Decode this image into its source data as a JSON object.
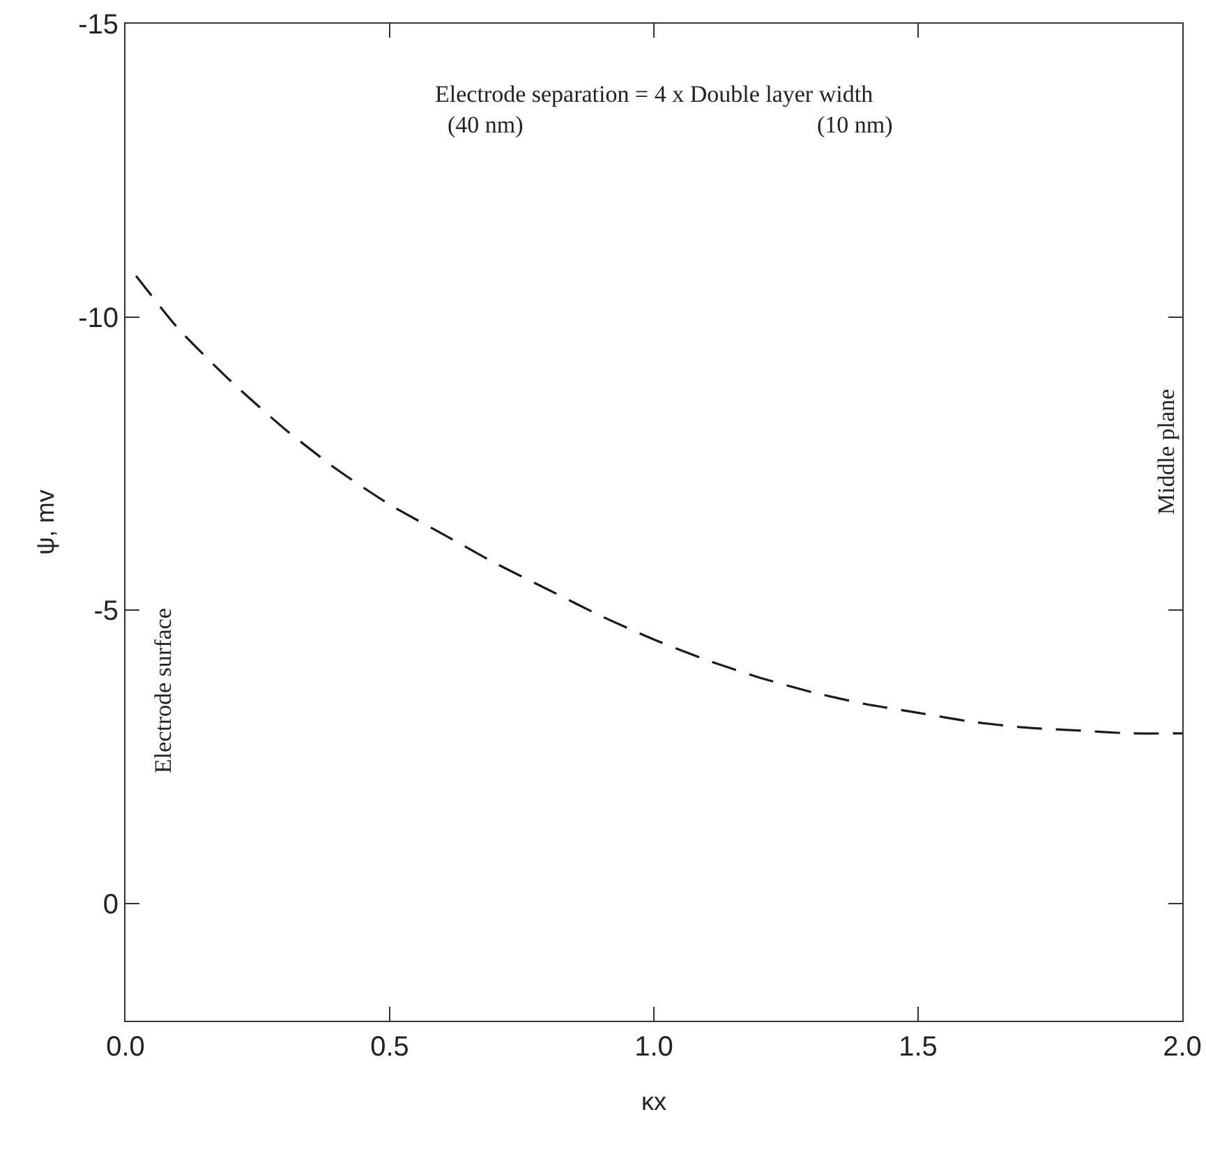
{
  "chart_data": {
    "type": "line",
    "xlabel": "κx",
    "ylabel": "ψ, mv",
    "x": [
      0.02,
      0.1,
      0.2,
      0.3,
      0.4,
      0.5,
      0.6,
      0.7,
      0.8,
      0.9,
      1.0,
      1.1,
      1.2,
      1.3,
      1.4,
      1.5,
      1.6,
      1.7,
      1.8,
      1.9,
      2.0
    ],
    "series": [
      {
        "color": "#1a1a1a",
        "values": [
          -10.7,
          -9.8,
          -8.9,
          -8.1,
          -7.4,
          -6.8,
          -6.3,
          -5.8,
          -5.35,
          -4.9,
          -4.5,
          -4.15,
          -3.85,
          -3.6,
          -3.4,
          -3.25,
          -3.1,
          -3.0,
          -2.95,
          -2.9,
          -2.9
        ]
      }
    ],
    "xlim": [
      0,
      2
    ],
    "xticks": [
      {
        "value": 0,
        "label": "0.0"
      },
      0.5,
      {
        "value": 1,
        "label": "1.0"
      },
      1.5,
      {
        "value": 2,
        "label": "2.0"
      }
    ],
    "ylim": [
      2,
      -15
    ],
    "yticks": [
      -15,
      -10,
      -5,
      0
    ],
    "grid": false,
    "marker": "none",
    "line_style": "dashed",
    "annotations": [
      "Electrode separation = 4 x Double layer width",
      "(40 nm)",
      "(10 nm)",
      "Electrode surface",
      "Middle plane"
    ]
  }
}
